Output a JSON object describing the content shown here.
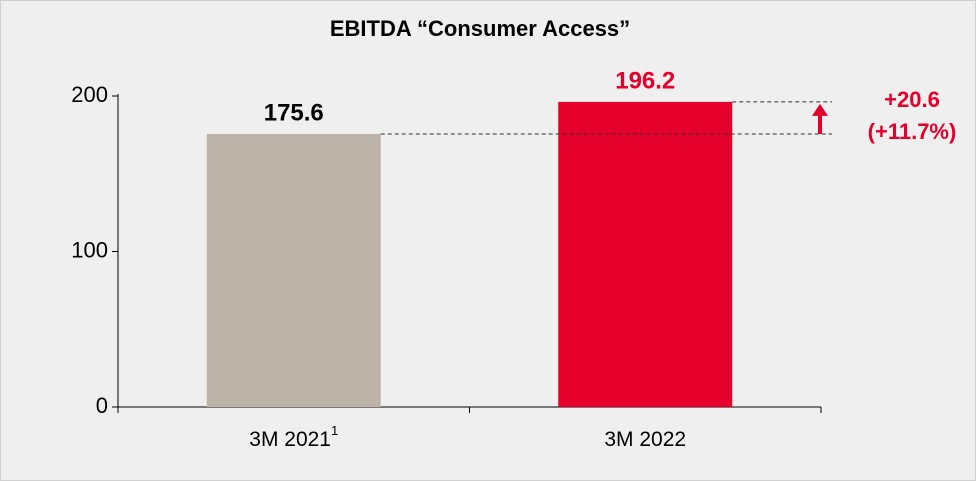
{
  "chart_data": {
    "type": "bar",
    "title": "EBITDA “Consumer Access”",
    "categories": [
      "3M 2021",
      "3M 2022"
    ],
    "category_superscripts": [
      "1",
      null
    ],
    "values": [
      175.6,
      196.2
    ],
    "colors": [
      "#bcb3a9",
      "#e4002b"
    ],
    "value_label_colors": [
      "#000000",
      "#e4002b"
    ],
    "ylim": [
      0,
      200
    ],
    "yticks": [
      0,
      100,
      200
    ],
    "grid": false,
    "annotations": [
      "+20.6",
      "(+11.7%)"
    ],
    "annotation_color": "#e4002b"
  }
}
